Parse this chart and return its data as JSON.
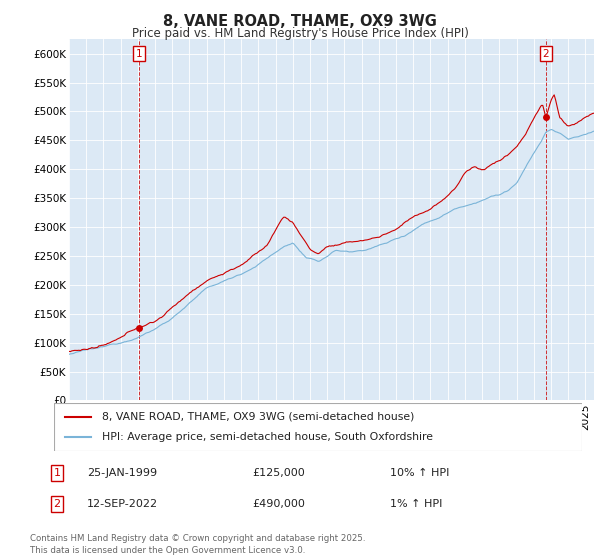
{
  "title": "8, VANE ROAD, THAME, OX9 3WG",
  "subtitle": "Price paid vs. HM Land Registry's House Price Index (HPI)",
  "legend_line1": "8, VANE ROAD, THAME, OX9 3WG (semi-detached house)",
  "legend_line2": "HPI: Average price, semi-detached house, South Oxfordshire",
  "annotation1_label": "1",
  "annotation1_date": "25-JAN-1999",
  "annotation1_price": "£125,000",
  "annotation1_hpi": "10% ↑ HPI",
  "annotation2_label": "2",
  "annotation2_date": "12-SEP-2022",
  "annotation2_price": "£490,000",
  "annotation2_hpi": "1% ↑ HPI",
  "footer": "Contains HM Land Registry data © Crown copyright and database right 2025.\nThis data is licensed under the Open Government Licence v3.0.",
  "hpi_color": "#7ab4d8",
  "price_color": "#cc0000",
  "annotation_color": "#cc0000",
  "ylim": [
    0,
    625000
  ],
  "yticks": [
    0,
    50000,
    100000,
    150000,
    200000,
    250000,
    300000,
    350000,
    400000,
    450000,
    500000,
    550000,
    600000
  ],
  "background_color": "#ffffff",
  "plot_bg_color": "#dce9f5",
  "grid_color": "#ffffff",
  "xlim_start": 1995,
  "xlim_end": 2025.5
}
